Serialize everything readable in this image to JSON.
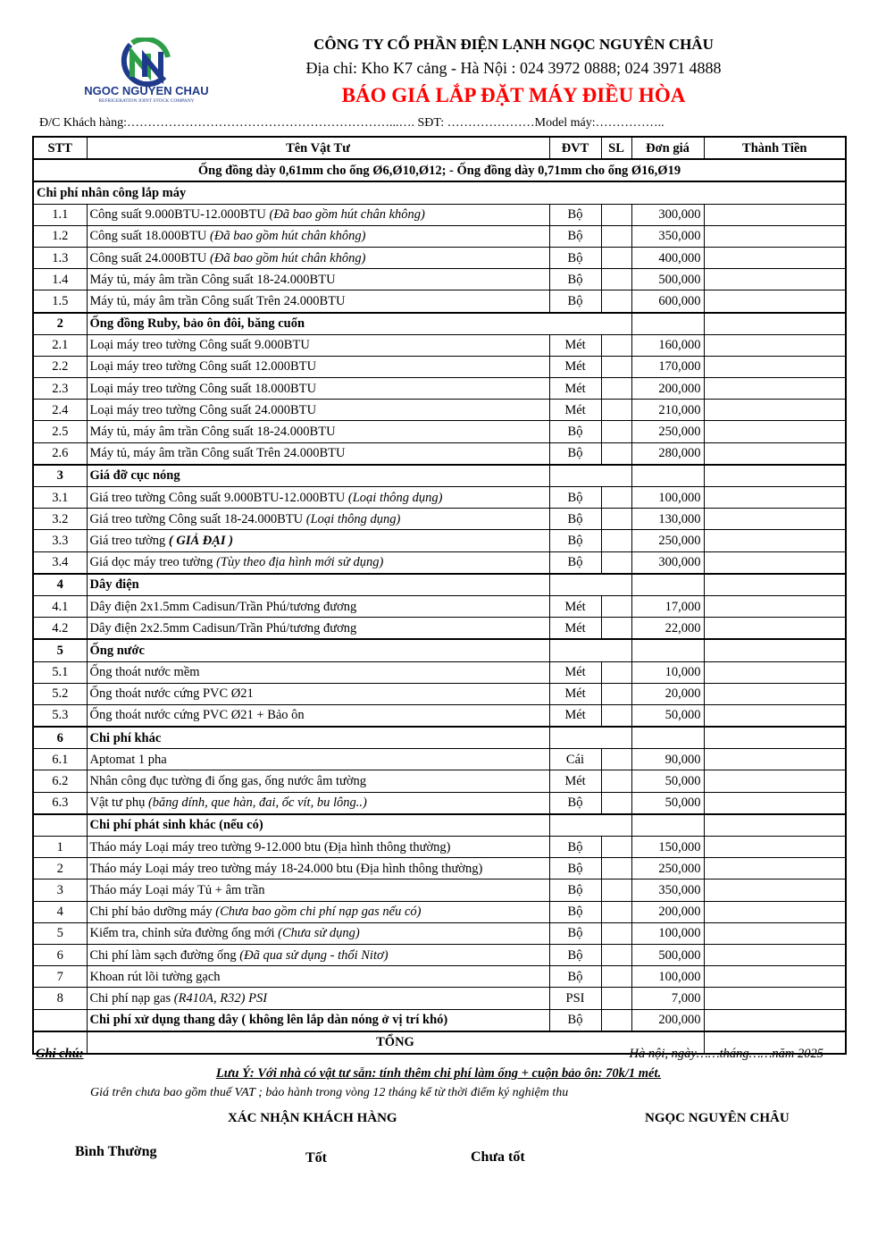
{
  "company": {
    "logo_name": "NGOC NGUYEN CHAU",
    "logo_sub": "REFRIGERATION JOINT STOCK COMPANY",
    "name": "CÔNG TY CỔ PHẦN ĐIỆN LẠNH NGỌC NGUYÊN CHÂU",
    "address": "Địa chỉ: Kho K7 cảng - Hà Nội : 024 3972 0888; 024 3971 4888",
    "title": "BÁO GIÁ  LẮP ĐẶT MÁY ĐIỀU HÒA",
    "colors": {
      "title": "#ff0000",
      "logo_blue": "#1f3a8a",
      "logo_green": "#2e9e48"
    }
  },
  "customer_line": "Đ/C Khách hàng:………………………………………………………...…. SĐT: …………………Model máy:……………..",
  "table": {
    "headers": [
      "STT",
      "Tên Vật Tư",
      "ĐVT",
      "SL",
      "Đơn giá",
      "Thành Tiền"
    ],
    "note": "Ống đồng dày 0,61mm cho ống Ø6,Ø10,Ø12;  - Ống đồng dày 0,71mm cho ống Ø16,Ø19",
    "groups": [
      {
        "stt": "",
        "title": "Chi phí nhân công lắp máy",
        "rows": [
          {
            "stt": "1.1",
            "name": "Công suất 9.000BTU-12.000BTU ",
            "note": "(Đã bao gồm hút chân không)",
            "unit": "Bộ",
            "price": "300,000"
          },
          {
            "stt": "1.2",
            "name": "Công suất 18.000BTU ",
            "note": "(Đã bao gồm hút chân không)",
            "unit": "Bộ",
            "price": "350,000"
          },
          {
            "stt": "1.3",
            "name": "Công suất 24.000BTU ",
            "note": "(Đã bao gồm hút chân không)",
            "unit": "Bộ",
            "price": "400,000"
          },
          {
            "stt": "1.4",
            "name": "Máy tủ, máy âm trần Công suất 18-24.000BTU",
            "note": "",
            "unit": "Bộ",
            "price": "500,000"
          },
          {
            "stt": "1.5",
            "name": "Máy tủ, máy âm trần Công suất Trên 24.000BTU",
            "note": "",
            "unit": "Bộ",
            "price": "600,000"
          }
        ]
      },
      {
        "stt": "2",
        "title": "Ống đồng Ruby, bảo ôn đôi, băng cuốn",
        "rows": [
          {
            "stt": "2.1",
            "name": "Loại máy treo tường Công suất 9.000BTU",
            "note": "",
            "unit": "Mét",
            "price": "160,000"
          },
          {
            "stt": "2.2",
            "name": "Loại máy treo tường Công suất 12.000BTU",
            "note": "",
            "unit": "Mét",
            "price": "170,000"
          },
          {
            "stt": "2.3",
            "name": "Loại máy treo tường Công suất 18.000BTU",
            "note": "",
            "unit": "Mét",
            "price": "200,000"
          },
          {
            "stt": "2.4",
            "name": "Loại máy treo tường Công suất 24.000BTU",
            "note": "",
            "unit": "Mét",
            "price": "210,000"
          },
          {
            "stt": "2.5",
            "name": "Máy tủ, máy âm trần Công suất 18-24.000BTU",
            "note": "",
            "unit": "Bộ",
            "price": "250,000"
          },
          {
            "stt": "2.6",
            "name": "Máy tủ, máy âm trần Công suất Trên 24.000BTU",
            "note": "",
            "unit": "Bộ",
            "price": "280,000"
          }
        ]
      },
      {
        "stt": "3",
        "title": "Giá đỡ cục nóng",
        "rows": [
          {
            "stt": "3.1",
            "name": "Giá treo tường Công suất 9.000BTU-12.000BTU ",
            "note": "(Loại thông dụng)",
            "unit": "Bộ",
            "price": "100,000"
          },
          {
            "stt": "3.2",
            "name": "Giá treo tường Công suất 18-24.000BTU ",
            "note": "(Loại thông dụng)",
            "unit": "Bộ",
            "price": "130,000"
          },
          {
            "stt": "3.3",
            "name": "Giá treo tường ",
            "note": "( GIẢ ĐẠI )",
            "bold_note": true,
            "unit": "Bộ",
            "price": "250,000"
          },
          {
            "stt": "3.4",
            "name": "Giá dọc máy treo tường ",
            "note": "(Tùy theo địa hình mới sử dụng)",
            "unit": "Bộ",
            "price": "300,000"
          }
        ]
      },
      {
        "stt": "4",
        "title": "Dây điện",
        "rows": [
          {
            "stt": "4.1",
            "name": "Dây điện 2x1.5mm Cadisun/Trần Phú/tương đương",
            "note": "",
            "unit": "Mét",
            "price": "17,000"
          },
          {
            "stt": "4.2",
            "name": "Dây điện 2x2.5mm Cadisun/Trần Phú/tương đương",
            "note": "",
            "unit": "Mét",
            "price": "22,000"
          }
        ]
      },
      {
        "stt": "5",
        "title": "Ống nước",
        "rows": [
          {
            "stt": "5.1",
            "name": "Ống thoát nước mềm",
            "note": "",
            "unit": "Mét",
            "price": "10,000"
          },
          {
            "stt": "5.2",
            "name": "Ống thoát nước cứng PVC Ø21",
            "note": "",
            "unit": "Mét",
            "price": "20,000"
          },
          {
            "stt": "5.3",
            "name": "Ống thoát nước cứng PVC Ø21 + Bảo ôn",
            "note": "",
            "unit": "Mét",
            "price": "50,000"
          }
        ]
      },
      {
        "stt": "6",
        "title": "Chi phí khác",
        "rows": [
          {
            "stt": "6.1",
            "name": "Aptomat 1 pha",
            "note": "",
            "unit": "Cái",
            "price": "90,000"
          },
          {
            "stt": "6.2",
            "name": "Nhân công đục tường đi ống gas, ống nước âm tường",
            "note": "",
            "unit": "Mét",
            "price": "50,000"
          },
          {
            "stt": "6.3",
            "name": "Vật tư phụ ",
            "note": "(băng dính, que hàn, đai, ốc vít, bu lông..)",
            "unit": "Bộ",
            "price": "50,000"
          }
        ]
      },
      {
        "stt": "",
        "title": "Chi phí phát sinh khác (nếu có)",
        "rows": [
          {
            "stt": "1",
            "name": "Tháo máy Loại máy treo tường 9-12.000  btu (Địa hình thông thường)",
            "note": "",
            "unit": "Bộ",
            "price": "150,000"
          },
          {
            "stt": "2",
            "name": "Tháo máy Loại máy treo tường máy 18-24.000 btu (Địa hình thông thường)",
            "note": "",
            "unit": "Bộ",
            "price": "250,000"
          },
          {
            "stt": "3",
            "name": "Tháo máy Loại máy Tủ + âm trần",
            "note": "",
            "unit": "Bộ",
            "price": "350,000"
          },
          {
            "stt": "4",
            "name": "Chi phí bảo dưỡng máy ",
            "note": "(Chưa bao gồm chi phí nạp gas nếu có)",
            "unit": "Bộ",
            "price": "200,000"
          },
          {
            "stt": "5",
            "name": "Kiểm tra, chỉnh sửa đường ống mới ",
            "note": "(Chưa sử dụng)",
            "unit": "Bộ",
            "price": "100,000"
          },
          {
            "stt": "6",
            "name": "Chi phí làm sạch đường ống ",
            "note": "(Đã qua sử dụng - thổi Nitơ)",
            "unit": "Bộ",
            "price": "500,000"
          },
          {
            "stt": "7",
            "name": "Khoan rút lõi tường gạch",
            "note": "",
            "unit": "Bộ",
            "price": "100,000"
          },
          {
            "stt": "8",
            "name": "Chi phí nạp gas ",
            "note": "(R410A, R32) PSI",
            "unit": "PSI",
            "price": "7,000"
          },
          {
            "stt": "",
            "name": "Chi phí xử dụng thang dây ( không lên lắp dàn nóng ở vị trí khó)",
            "note": "",
            "bold": true,
            "unit": "Bộ",
            "price": "200,000"
          }
        ]
      }
    ],
    "total_label": "TỔNG"
  },
  "footer": {
    "note_label": "Ghi chú:",
    "date": "Hà nội, ngày……tháng……năm 2025",
    "warning": "Lưu Ý: Với nhà có vật tư sẵn:  tính thêm chi phí làm ống + cuộn bảo ôn: 70k/1 mét.",
    "vat": "Giá trên chưa bao gồm thuế VAT ; bảo hành trong vòng 12 tháng kể từ thời điểm ký nghiệm thu",
    "customer_confirm": "XÁC NHẬN KHÁCH HÀNG",
    "company_sign": "NGỌC NGUYÊN CHÂU",
    "rating_normal": "Bình Thường",
    "rating_good": "Tốt",
    "rating_bad": "Chưa tốt"
  }
}
